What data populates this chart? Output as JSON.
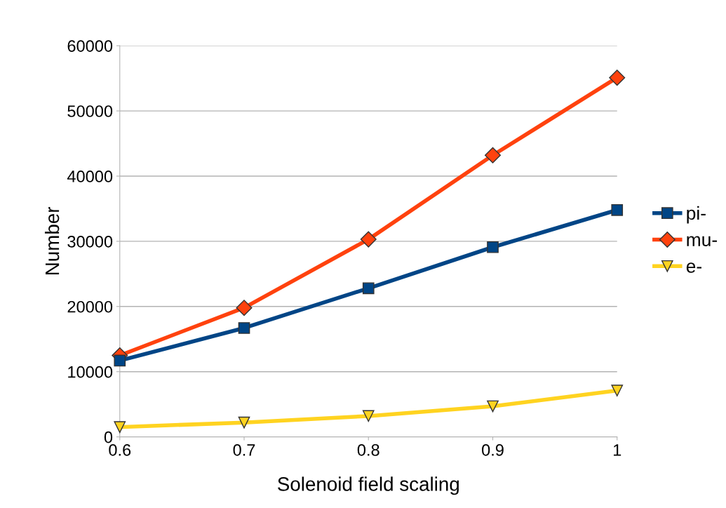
{
  "chart_data": {
    "type": "line",
    "xlabel": "Solenoid field scaling",
    "ylabel": "Number",
    "x": [
      0.6,
      0.7,
      0.8,
      0.9,
      1
    ],
    "series": [
      {
        "name": "pi-",
        "color": "#004586",
        "marker": "square",
        "values": [
          11700,
          16700,
          22800,
          29100,
          34800
        ]
      },
      {
        "name": "mu-",
        "color": "#ff420e",
        "marker": "diamond",
        "values": [
          12500,
          19800,
          30300,
          43200,
          55100
        ]
      },
      {
        "name": "e-",
        "color": "#ffd320",
        "marker": "triangle",
        "values": [
          1500,
          2200,
          3200,
          4700,
          7100
        ]
      }
    ],
    "xlim": [
      0.6,
      1
    ],
    "xticks": [
      0.6,
      0.7,
      0.8,
      0.9,
      1
    ],
    "ylim": [
      0,
      60000
    ],
    "yticks": [
      0,
      10000,
      20000,
      30000,
      40000,
      50000,
      60000
    ],
    "grid": "y",
    "legend": "right"
  }
}
